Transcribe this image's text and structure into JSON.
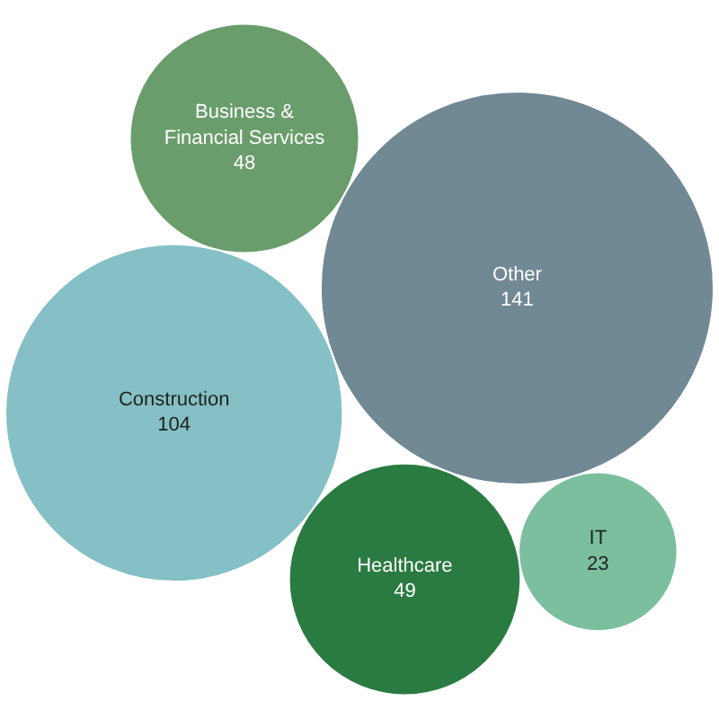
{
  "chart_data": {
    "type": "other",
    "categories": [
      "IT",
      "Business & Financial Services",
      "Other",
      "Construction",
      "Healthcare"
    ],
    "values": [
      23,
      48,
      141,
      104,
      49
    ],
    "colors": [
      "#7bbf9f",
      "#6a9d6c",
      "#718895",
      "#84c0c5",
      "#2a7b42"
    ],
    "data_labels": true
  }
}
